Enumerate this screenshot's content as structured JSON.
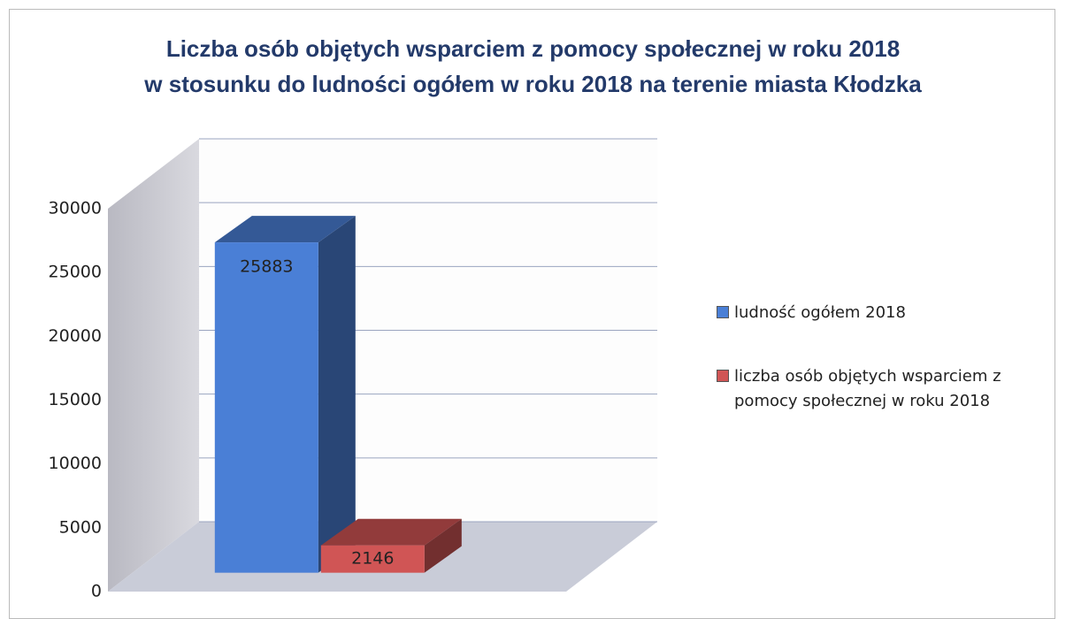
{
  "chart_data": {
    "type": "bar3d",
    "title": [
      "Liczba osób objętych wsparciem z pomocy społecznej w roku 2018",
      "w stosunku do ludności ogółem w roku 2018 na terenie miasta Kłodzka"
    ],
    "categories": [
      null
    ],
    "series": [
      {
        "name": "ludność ogółem 2018",
        "color": "#4a7fd6",
        "values": [
          25883
        ]
      },
      {
        "name": "liczba osób objętych wsparciem z pomocy społecznej w roku 2018",
        "color": "#d05555",
        "values": [
          2146
        ]
      }
    ],
    "ylim": [
      0,
      30000
    ],
    "yticks": [
      0,
      5000,
      10000,
      15000,
      20000,
      25000,
      30000
    ],
    "grid": true,
    "legend": "right"
  }
}
